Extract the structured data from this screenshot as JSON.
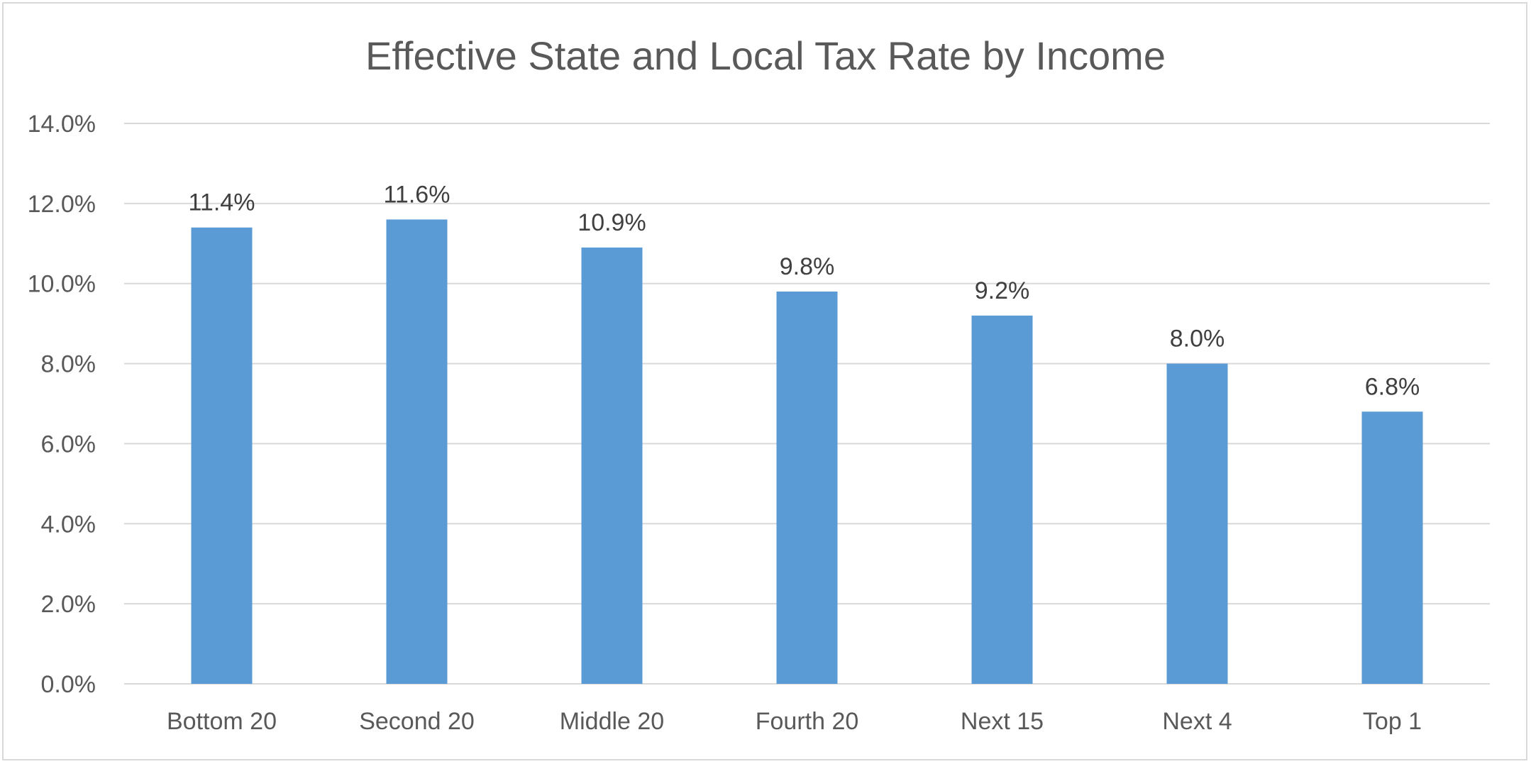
{
  "chart_data": {
    "type": "bar",
    "title": "Effective State and Local Tax Rate by Income",
    "xlabel": "",
    "ylabel": "",
    "categories": [
      "Bottom 20",
      "Second 20",
      "Middle 20",
      "Fourth 20",
      "Next 15",
      "Next 4",
      "Top 1"
    ],
    "values": [
      11.4,
      11.6,
      10.9,
      9.8,
      9.2,
      8.0,
      6.8
    ],
    "data_labels": [
      "11.4%",
      "11.6%",
      "10.9%",
      "9.8%",
      "9.2%",
      "8.0%",
      "6.8%"
    ],
    "ylim": [
      0,
      14
    ],
    "yticks": [
      0,
      2,
      4,
      6,
      8,
      10,
      12,
      14
    ],
    "ytick_labels": [
      "0.0%",
      "2.0%",
      "4.0%",
      "6.0%",
      "8.0%",
      "10.0%",
      "12.0%",
      "14.0%"
    ],
    "grid": true,
    "legend": "none",
    "bar_color": "#5b9bd5",
    "grid_color": "#d9d9d9"
  }
}
